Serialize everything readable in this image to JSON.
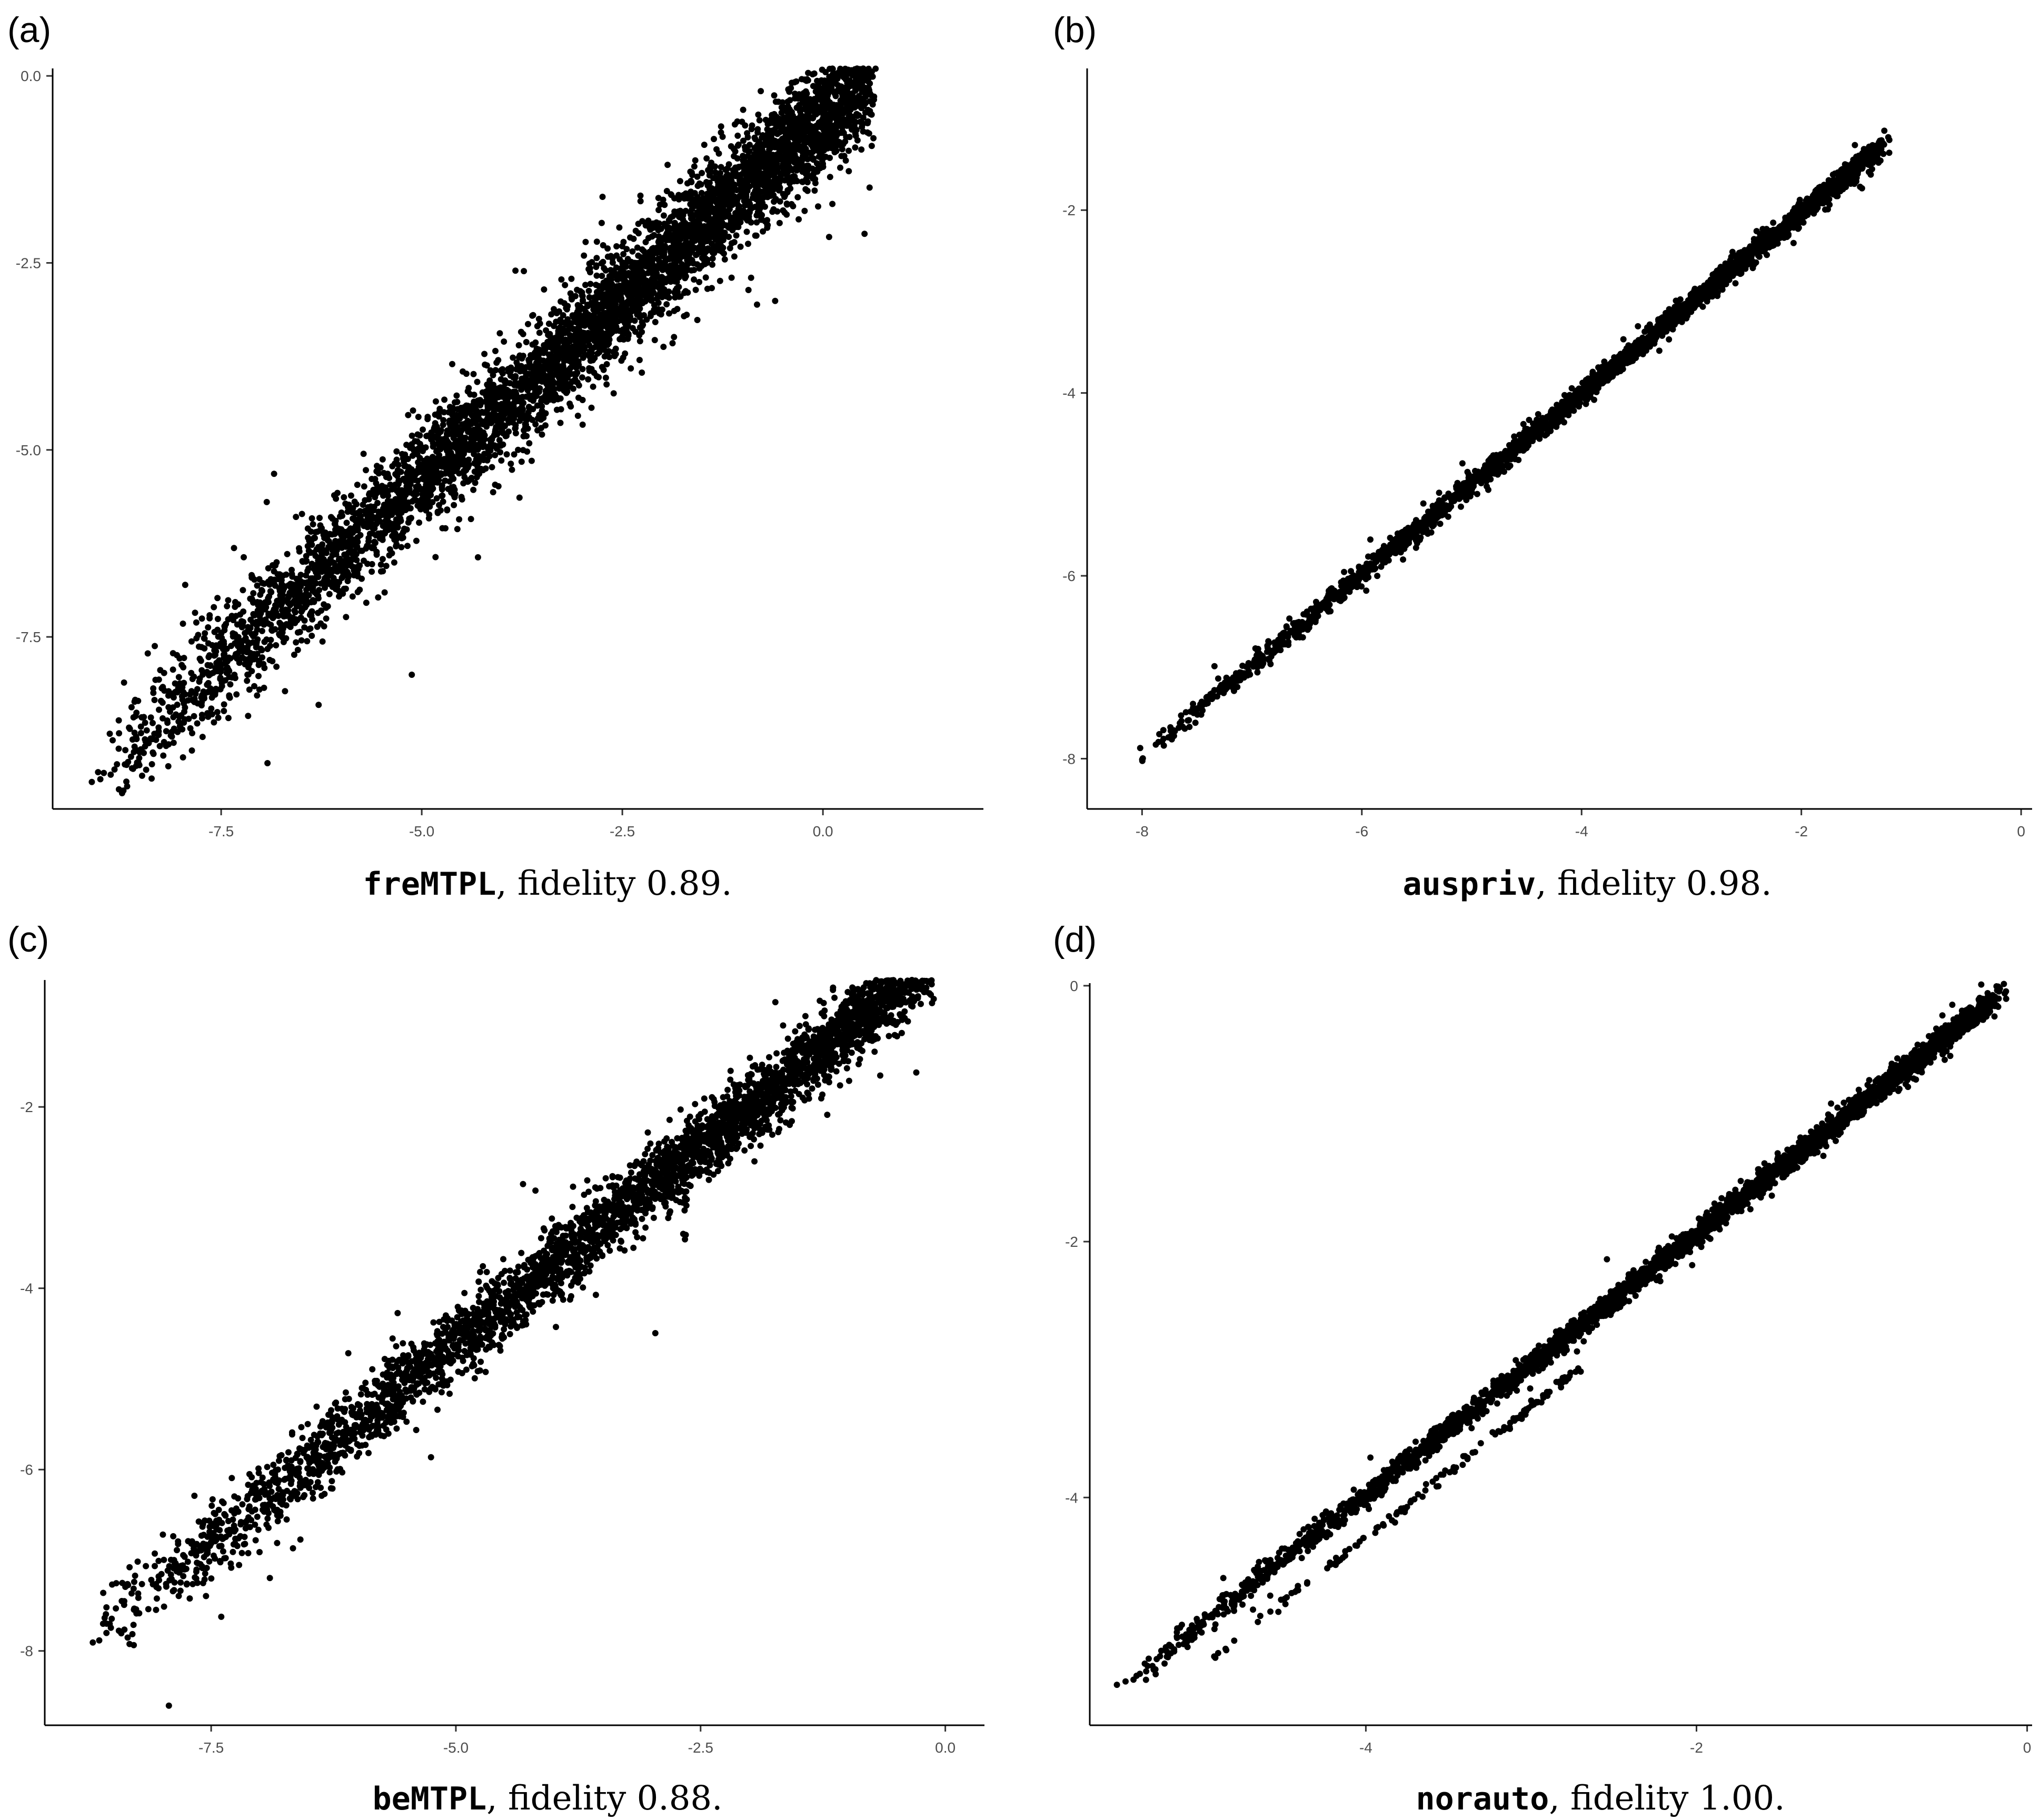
{
  "chart_data": [
    {
      "type": "scatter",
      "panel": "(a)",
      "caption_name": "freMTPL",
      "caption_rest": ", fidelity 0.89.",
      "fidelity": 0.89,
      "x_ticks": [
        "-7.5",
        "-5.0",
        "-2.5",
        "0.0"
      ],
      "x_tick_values": [
        -7.5,
        -5.0,
        -2.5,
        0.0
      ],
      "y_ticks": [
        "0.0",
        "-2.5",
        "-5.0",
        "-7.5"
      ],
      "y_tick_values": [
        0.0,
        -2.5,
        -5.0,
        -7.5
      ],
      "xlim": [
        -9.6,
        2.0
      ],
      "ylim": [
        -9.8,
        0.1
      ],
      "x_range": [
        -9.1,
        0.6
      ],
      "slope": 0.97,
      "intercept": -0.55,
      "spread": 0.35,
      "legend": false,
      "grid": false
    },
    {
      "type": "scatter",
      "panel": "(b)",
      "caption_name": "auspriv",
      "caption_rest": ", fidelity 0.98.",
      "fidelity": 0.98,
      "x_ticks": [
        "-8",
        "-6",
        "-4",
        "-2",
        "0"
      ],
      "x_tick_values": [
        -8,
        -6,
        -4,
        -2,
        0
      ],
      "y_ticks": [
        "-2",
        "-4",
        "-6",
        "-8"
      ],
      "y_tick_values": [
        -2,
        -4,
        -6,
        -8
      ],
      "xlim": [
        -8.5,
        0.1
      ],
      "ylim": [
        -8.55,
        -0.45
      ],
      "x_range": [
        -8.05,
        -1.3
      ],
      "slope": 0.99,
      "intercept": -0.05,
      "spread": 0.06,
      "legend": false,
      "grid": false
    },
    {
      "type": "scatter",
      "panel": "(c)",
      "caption_name": "beMTPL",
      "caption_rest": ", fidelity 0.88.",
      "fidelity": 0.88,
      "x_ticks": [
        "-7.5",
        "-5.0",
        "-2.5",
        "0.0"
      ],
      "x_tick_values": [
        -7.5,
        -5.0,
        -2.5,
        0.0
      ],
      "y_ticks": [
        "-2",
        "-4",
        "-6",
        "-8"
      ],
      "y_tick_values": [
        -2,
        -4,
        -6,
        -8
      ],
      "xlim": [
        -9.2,
        0.4
      ],
      "ylim": [
        -8.82,
        -0.6
      ],
      "x_range": [
        -8.7,
        -0.1
      ],
      "slope": 0.87,
      "intercept": -0.26,
      "spread": 0.2,
      "legend": false,
      "grid": false
    },
    {
      "type": "scatter",
      "panel": "(d)",
      "caption_name": "norauto",
      "caption_rest": ", fidelity 1.00.",
      "fidelity": 1.0,
      "x_ticks": [
        "-4",
        "-2",
        "0"
      ],
      "x_tick_values": [
        -4,
        -2,
        0
      ],
      "y_ticks": [
        "0",
        "-2",
        "-4"
      ],
      "y_tick_values": [
        0,
        -2,
        -4
      ],
      "xlim": [
        -5.67,
        0.03
      ],
      "ylim": [
        -5.78,
        0.02
      ],
      "x_range": [
        -5.4,
        -0.2
      ],
      "slope": 1.02,
      "intercept": 0.1,
      "spread": 0.045,
      "legend": false,
      "grid": false
    }
  ]
}
